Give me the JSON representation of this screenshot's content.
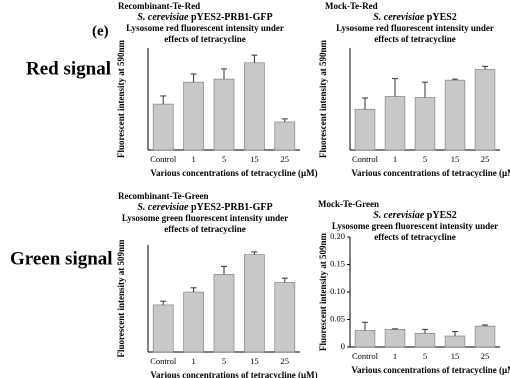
{
  "panel_label": "(e)",
  "row_labels": [
    "Red signal",
    "Green signal"
  ],
  "chart_data": [
    {
      "type": "bar",
      "label": "Recombinant-Te-Red",
      "strain": {
        "species": "S. cerevisiae",
        "plasmid": "pYES2-PRB1-GFP"
      },
      "title": [
        "Lysosome red fluorescent intensity under",
        "effects of tetracycline"
      ],
      "y_label": "Fluorescent intensity at 590nm",
      "x_label": "Various concentrations of tetracycline (μM)",
      "categories": [
        "Control",
        "1",
        "5",
        "15",
        "25"
      ],
      "values": [
        0.09,
        0.133,
        0.139,
        0.171,
        0.055
      ],
      "errors": [
        0.016,
        0.016,
        0.02,
        0.015,
        0.006
      ],
      "color": "#c8c8c8",
      "ylim": [
        0,
        0.2
      ]
    },
    {
      "type": "bar",
      "label": "Mock-Te-Red",
      "strain": {
        "species": "S. cerevisiae",
        "plasmid": "pYES2"
      },
      "title": [
        "Lysosome red fluorescent intensity under",
        "effects of tetracycline"
      ],
      "y_label": "Fluorescent intensity at 590nm",
      "x_label": "Various concentrations of tetracycline (μM)",
      "categories": [
        "Control",
        "1",
        "5",
        "15",
        "25"
      ],
      "values": [
        0.08,
        0.105,
        0.103,
        0.137,
        0.158
      ],
      "errors": [
        0.022,
        0.035,
        0.03,
        0.002,
        0.006
      ],
      "color": "#c8c8c8",
      "ylim": [
        0,
        0.2
      ]
    },
    {
      "type": "bar",
      "label": "Recombinant-Te-Green",
      "strain": {
        "species": "S. cerevisiae",
        "plasmid": "pYES2-PRB1-GFP"
      },
      "title": [
        "Lysosome green fluorescent intensity under",
        "effects of tetracycline"
      ],
      "y_label": "Fluorescent intensity at 509nm",
      "x_label": "Various concentrations of tetracycline (μM)",
      "categories": [
        "Control",
        "1",
        "5",
        "15",
        "25"
      ],
      "values": [
        0.088,
        0.112,
        0.145,
        0.182,
        0.13
      ],
      "errors": [
        0.007,
        0.008,
        0.015,
        0.005,
        0.008
      ],
      "color": "#c8c8c8",
      "ylim": [
        0,
        0.2
      ]
    },
    {
      "type": "bar",
      "label": "Mock-Te-Green",
      "strain": {
        "species": "S. cerevisiae",
        "plasmid": "pYES2"
      },
      "title": [
        "Lysosome green fluorescent intensity under",
        "effects of tetracycline"
      ],
      "y_label": "Fluorescent intensity at 509nm",
      "x_label": "Various concentrations of tetracycline (μM)",
      "categories": [
        "Control",
        "1",
        "5",
        "15",
        "25"
      ],
      "values": [
        0.03,
        0.032,
        0.025,
        0.02,
        0.038
      ],
      "errors": [
        0.015,
        0.001,
        0.007,
        0.008,
        0.002
      ],
      "color": "#c8c8c8",
      "ylim": [
        0,
        0.2
      ],
      "yticks": [
        {
          "value": 0.2,
          "label": "0.20"
        },
        0.15,
        {
          "value": 0.1,
          "label": "0.10"
        },
        0.05,
        0
      ]
    }
  ]
}
